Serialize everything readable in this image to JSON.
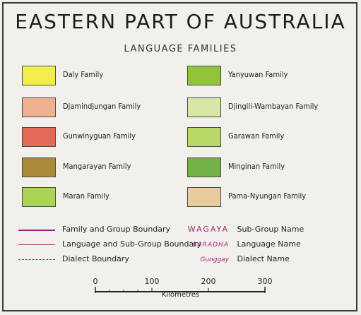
{
  "title": "EASTERN PART OF AUSTRALIA",
  "subtitle": "LANGUAGE FAMILIES",
  "families_left": [
    {
      "label": "Daly Family",
      "color": "#f2ec4e"
    },
    {
      "label": "Djamindjungan Family",
      "color": "#efb08f"
    },
    {
      "label": "Gunwinyguan Family",
      "color": "#e36a57"
    },
    {
      "label": "Mangarayan Family",
      "color": "#a9893a"
    },
    {
      "label": "Maran Family",
      "color": "#aad457"
    }
  ],
  "families_right": [
    {
      "label": "Yanyuwan Family",
      "color": "#92c43b"
    },
    {
      "label": "Djingili-Wambayan Family",
      "color": "#d6e7a6"
    },
    {
      "label": "Garawan Family",
      "color": "#b9d867"
    },
    {
      "label": "Minginan Family",
      "color": "#74b147"
    },
    {
      "label": "Pama-Nyungan Family",
      "color": "#e8cc9e"
    }
  ],
  "boundaries": [
    {
      "label": "Family and Group Boundary",
      "style": "solid-thick"
    },
    {
      "label": "Language and Sub-Group Boundary",
      "style": "solid-thin"
    },
    {
      "label": "Dialect Boundary",
      "style": "dashed"
    }
  ],
  "names": [
    {
      "sample": "WAGAYA",
      "label": "Sub-Group Name"
    },
    {
      "sample": "BARADHA",
      "label": "Language Name"
    },
    {
      "sample": "Gunggay",
      "label": "Dialect Name"
    }
  ],
  "scale": {
    "ticks": [
      "0",
      "100",
      "200",
      "300"
    ],
    "caption": "Kilometres"
  },
  "colors": {
    "boundary": "#a0267f",
    "name_text": "#a0267f"
  }
}
